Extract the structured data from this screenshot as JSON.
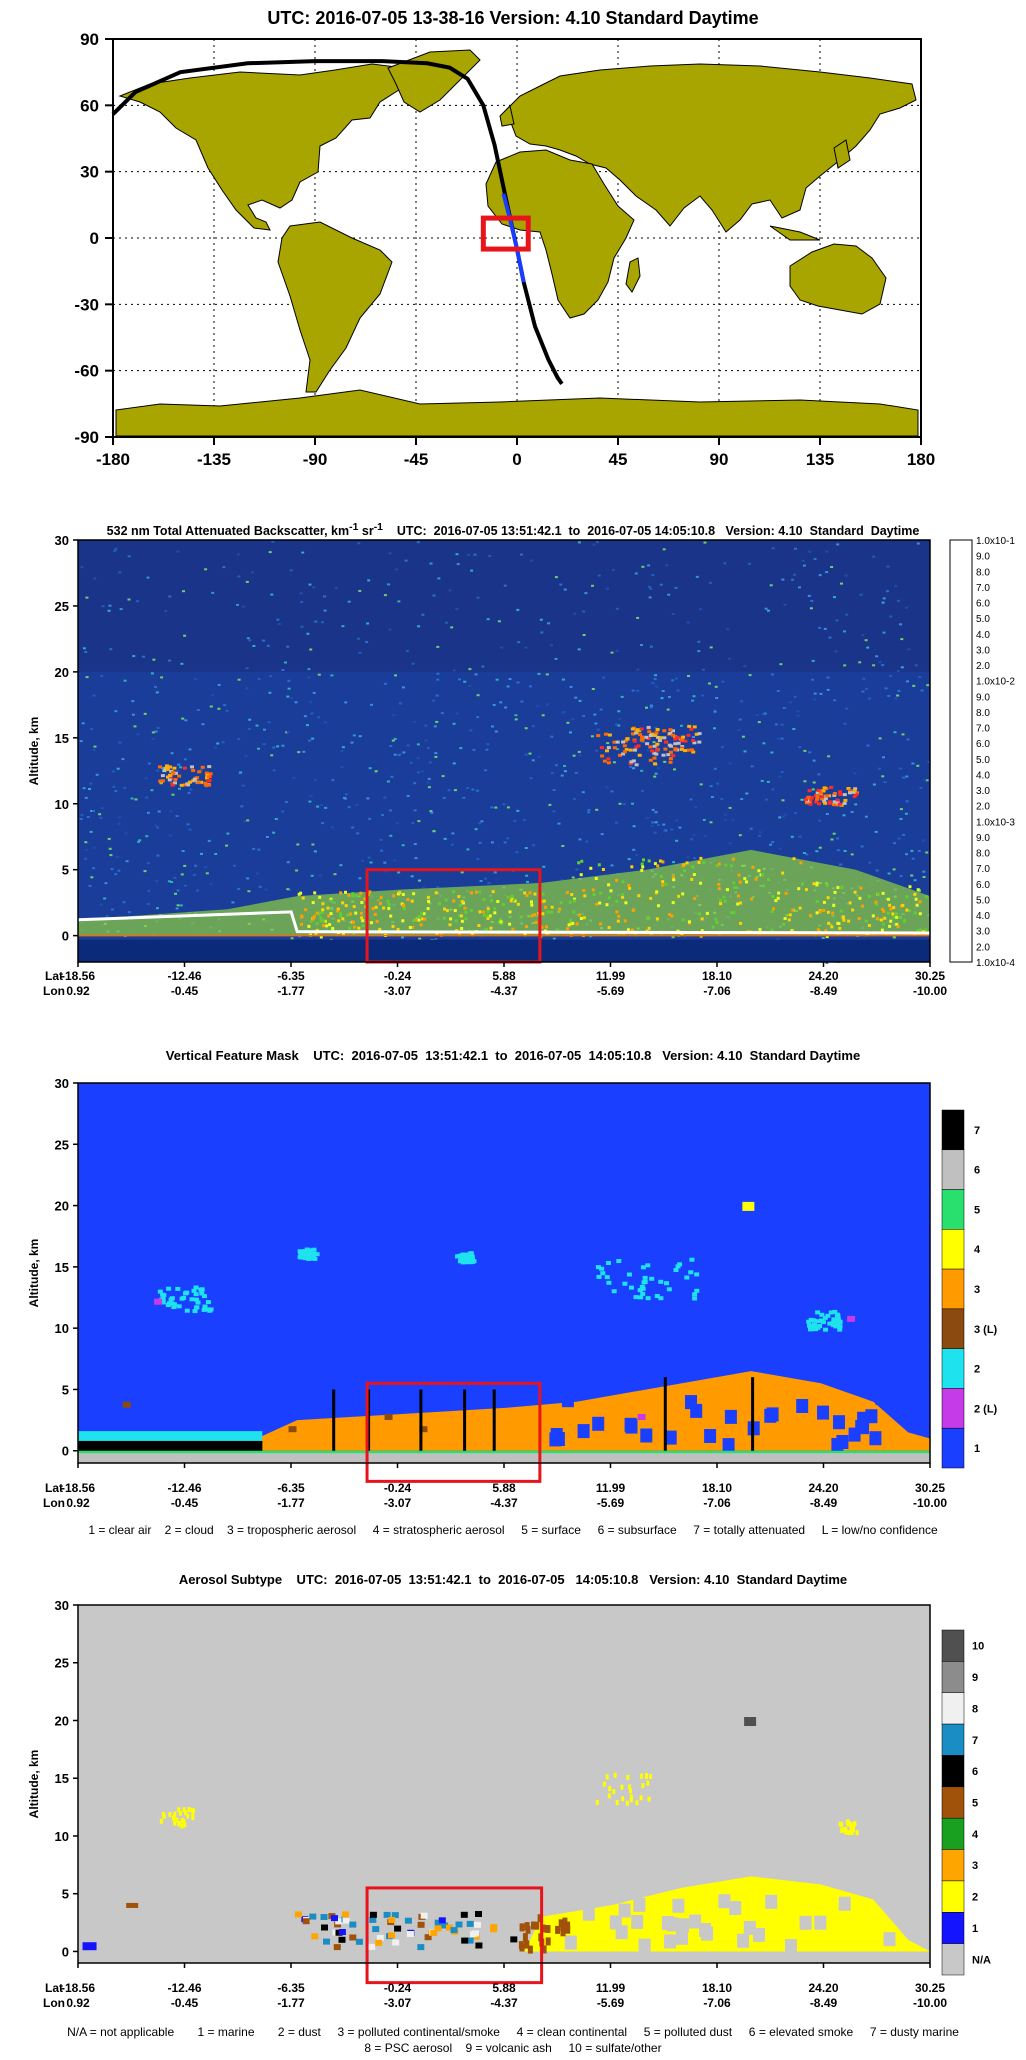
{
  "map": {
    "title": "UTC: 2016-07-05  13-38-16    Version: 4.10  Standard    Daytime",
    "y_ticks": [
      "90",
      "60",
      "30",
      "0",
      "-30",
      "-60",
      "-90"
    ],
    "x_ticks": [
      "-180",
      "-135",
      "-90",
      "-45",
      "0",
      "45",
      "90",
      "135",
      "180"
    ],
    "colors": {
      "land": "#a8a400",
      "track": "#000000",
      "highlight_track": "#1a3cff",
      "box": "#e8141b"
    }
  },
  "backscatter": {
    "title_main": "532 nm Total Attenuated Backscatter, km",
    "title_sup1": "-1",
    "title_mid": " sr",
    "title_sup2": "-1",
    "title_rest": "    UTC:  2016-07-05 13:51:42.1  to  2016-07-05 14:05:10.8   Version: 4.10  Standard  Daytime",
    "ylabel": "Altitude, km",
    "y_ticks": [
      "30",
      "25",
      "20",
      "15",
      "10",
      "5",
      "0"
    ],
    "colorbar_labels": [
      "1.0x10-1",
      "9.0",
      "8.0",
      "7.0",
      "6.0",
      "5.0",
      "4.0",
      "3.0",
      "2.0",
      "1.0x10-2",
      "9.0",
      "8.0",
      "7.0",
      "6.0",
      "5.0",
      "4.0",
      "3.0",
      "2.0",
      "1.0x10-3",
      "9.0",
      "8.0",
      "7.0",
      "6.0",
      "5.0",
      "4.0",
      "3.0",
      "2.0",
      "1.0x10-4"
    ],
    "colorbar_colors": [
      "#ffffff",
      "#f4f4f4",
      "#e9e9e9",
      "#dddddd",
      "#d2d2d2",
      "#c6c6c6",
      "#b6b6b6",
      "#a4a4a4",
      "#929292",
      "#808080",
      "#6c6c6c",
      "#585858",
      "#ff9fce",
      "#ff4f8f",
      "#ff1a1a",
      "#ff5a00",
      "#ff8a00",
      "#ffad00",
      "#ffd000",
      "#ffff00",
      "#c8ff00",
      "#7cff3a",
      "#00b35a",
      "#00c8a0",
      "#00a0e0",
      "#0078ff",
      "#0046d0",
      "#001ea0"
    ]
  },
  "vfm": {
    "title": "Vertical Feature Mask    UTC:  2016-07-05  13:51:42.1  to  2016-07-05  14:05:10.8   Version: 4.10  Standard Daytime",
    "ylabel": "Altitude, km",
    "y_ticks": [
      "30",
      "25",
      "20",
      "15",
      "10",
      "5",
      "0"
    ],
    "colorbar": [
      {
        "label": "7",
        "color": "#000000"
      },
      {
        "label": "6",
        "color": "#c0c0c0"
      },
      {
        "label": "5",
        "color": "#29e06f"
      },
      {
        "label": "4",
        "color": "#ffff00"
      },
      {
        "label": "3",
        "color": "#ff9a00"
      },
      {
        "label": "3 (L)",
        "color": "#8b4a0f"
      },
      {
        "label": "2",
        "color": "#1ee3ef"
      },
      {
        "label": "2 (L)",
        "color": "#c53be8"
      },
      {
        "label": "1",
        "color": "#1a3fff"
      }
    ],
    "legend": "1 = clear air    2 = cloud    3 = tropospheric aerosol     4 = stratospheric aerosol     5 = surface     6 = subsurface     7 = totally attenuated     L = low/no confidence"
  },
  "aerosol": {
    "title": "Aerosol Subtype    UTC:  2016-07-05  13:51:42.1  to  2016-07-05   14:05:10.8   Version: 4.10  Standard Daytime",
    "ylabel": "Altitude, km",
    "y_ticks": [
      "30",
      "25",
      "20",
      "15",
      "10",
      "5",
      "0"
    ],
    "colorbar": [
      {
        "label": "10",
        "color": "#505050"
      },
      {
        "label": "9",
        "color": "#8c8c8c"
      },
      {
        "label": "8",
        "color": "#f0f0f0"
      },
      {
        "label": "7",
        "color": "#1a8ec4"
      },
      {
        "label": "6",
        "color": "#000000"
      },
      {
        "label": "5",
        "color": "#a0520a"
      },
      {
        "label": "4",
        "color": "#1aa020"
      },
      {
        "label": "3",
        "color": "#ffa500"
      },
      {
        "label": "2",
        "color": "#ffff00"
      },
      {
        "label": "1",
        "color": "#1414ff"
      },
      {
        "label": "N/A",
        "color": "#c8c8c8"
      }
    ],
    "legend1": "N/A = not applicable       1 = marine       2 = dust     3 = polluted continental/smoke     4 = clean continental     5 = polluted dust     6 = elevated smoke     7 = dusty marine",
    "legend2": "8 = PSC aerosol    9 = volcanic ash     10 = sulfate/other"
  },
  "latlon": {
    "lat_label": "Lat",
    "lon_label": "Lon",
    "lat": [
      "-18.56",
      "-12.46",
      "-6.35",
      "-0.24",
      "5.88",
      "11.99",
      "18.10",
      "24.20",
      "30.25"
    ],
    "lon": [
      "0.92",
      "-0.45",
      "-1.77",
      "-3.07",
      "-4.37",
      "-5.69",
      "-7.06",
      "-8.49",
      "-10.00"
    ]
  },
  "chart_data": [
    {
      "type": "map",
      "title": "UTC: 2016-07-05  13-38-16    Version: 4.10  Standard    Daytime",
      "xlim": [
        -180,
        180
      ],
      "ylim": [
        -90,
        90
      ],
      "grid": true,
      "track": {
        "lon": [
          -180,
          -170,
          -150,
          -120,
          -90,
          -60,
          -40,
          -30,
          -22,
          -15,
          -10,
          -5,
          0,
          3,
          8,
          14,
          18,
          20
        ],
        "lat": [
          56,
          66,
          75,
          79,
          80,
          80,
          79,
          77,
          72,
          60,
          42,
          18,
          -5,
          -20,
          -40,
          -55,
          -63,
          -66
        ]
      },
      "highlight_box": {
        "lon": [
          -15,
          5
        ],
        "lat": [
          -5,
          9
        ]
      }
    },
    {
      "type": "heatmap",
      "title": "532 nm Total Attenuated Backscatter, km-1 sr-1",
      "ylabel": "Altitude, km",
      "ylim": [
        -2,
        30
      ],
      "x_lat": [
        -18.56,
        -12.46,
        -6.35,
        -0.24,
        5.88,
        11.99,
        18.1,
        24.2,
        30.25
      ],
      "x_lon": [
        0.92,
        -0.45,
        -1.77,
        -3.07,
        -4.37,
        -5.69,
        -7.06,
        -8.49,
        -10.0
      ],
      "colorbar_range": [
        "1.0x10-4",
        "1.0x10-1"
      ],
      "highlight_box": {
        "lat": [
          -2.0,
          7.9
        ],
        "alt": [
          -1,
          5
        ]
      }
    },
    {
      "type": "heatmap",
      "title": "Vertical Feature Mask",
      "ylabel": "Altitude, km",
      "ylim": [
        -1,
        30
      ],
      "classes": [
        "1",
        "2 (L)",
        "2",
        "3 (L)",
        "3",
        "4",
        "5",
        "6",
        "7"
      ],
      "highlight_box": {
        "lat": [
          -2.0,
          7.9
        ],
        "alt": [
          -1,
          5.5
        ]
      }
    },
    {
      "type": "heatmap",
      "title": "Aerosol Subtype",
      "ylabel": "Altitude, km",
      "ylim": [
        -1,
        30
      ],
      "classes": [
        "N/A",
        "1",
        "2",
        "3",
        "4",
        "5",
        "6",
        "7",
        "8",
        "9",
        "10"
      ],
      "highlight_box": {
        "lat": [
          -2.0,
          8.0
        ],
        "alt": [
          -1,
          5.5
        ]
      }
    }
  ]
}
